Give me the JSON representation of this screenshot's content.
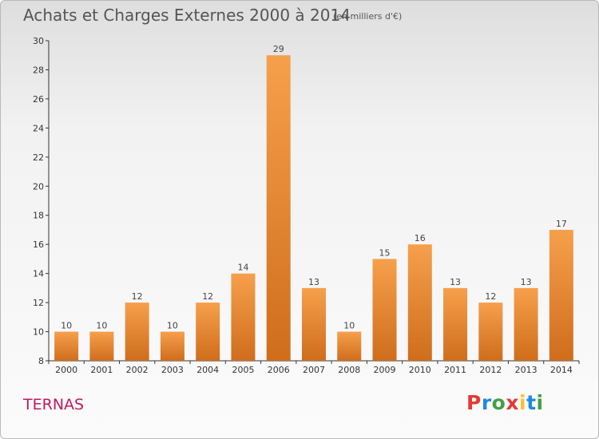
{
  "title": "Achats et Charges Externes 2000 à 2014",
  "unit": "(en milliers d'€)",
  "commune": "TERNAS",
  "logo": "Proxiti",
  "colors": {
    "bar_top": "#f6a04c",
    "bar_bottom": "#cf6d1c",
    "axis": "#333333",
    "text": "#555555",
    "commune": "#c2185b"
  },
  "chart_data": {
    "type": "bar",
    "categories": [
      "2000",
      "2001",
      "2002",
      "2003",
      "2004",
      "2005",
      "2006",
      "2007",
      "2008",
      "2009",
      "2010",
      "2011",
      "2012",
      "2013",
      "2014"
    ],
    "values": [
      10,
      10,
      12,
      10,
      12,
      14,
      29,
      13,
      10,
      15,
      16,
      13,
      12,
      13,
      17
    ],
    "ylim": [
      8,
      30
    ],
    "yticks": [
      8,
      10,
      12,
      14,
      16,
      18,
      20,
      22,
      24,
      26,
      28,
      30
    ],
    "grid": false,
    "title": "Achats et Charges Externes 2000 à 2014",
    "xlabel": "",
    "ylabel": ""
  }
}
